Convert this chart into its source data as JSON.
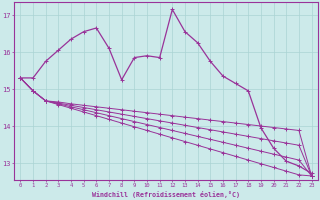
{
  "xlabel": "Windchill (Refroidissement éolien,°C)",
  "background_color": "#cceaea",
  "grid_color": "#aad4d4",
  "line_color": "#993399",
  "xlim": [
    -0.5,
    23.5
  ],
  "ylim": [
    12.55,
    17.35
  ],
  "yticks": [
    13,
    14,
    15,
    16,
    17
  ],
  "xticks": [
    0,
    1,
    2,
    3,
    4,
    5,
    6,
    7,
    8,
    9,
    10,
    11,
    12,
    13,
    14,
    15,
    16,
    17,
    18,
    19,
    20,
    21,
    22,
    23
  ],
  "series": [
    [
      15.3,
      15.3,
      15.75,
      16.05,
      16.35,
      16.55,
      16.65,
      16.1,
      15.25,
      15.85,
      15.9,
      15.85,
      17.15,
      16.55,
      16.25,
      15.75,
      15.35,
      15.15,
      14.95,
      13.95,
      13.4,
      13.05,
      12.92,
      12.72
    ],
    [
      15.3,
      14.95,
      14.68,
      14.58,
      14.48,
      14.38,
      14.28,
      14.18,
      14.08,
      13.98,
      13.88,
      13.78,
      13.68,
      13.58,
      13.48,
      13.38,
      13.28,
      13.18,
      13.08,
      12.98,
      12.88,
      12.78,
      12.68,
      12.65
    ],
    [
      15.3,
      14.95,
      14.68,
      14.6,
      14.52,
      14.44,
      14.36,
      14.28,
      14.2,
      14.12,
      14.04,
      13.96,
      13.88,
      13.8,
      13.72,
      13.64,
      13.56,
      13.48,
      13.4,
      13.32,
      13.24,
      13.16,
      13.08,
      12.65
    ],
    [
      15.3,
      14.95,
      14.68,
      14.62,
      14.56,
      14.5,
      14.44,
      14.38,
      14.32,
      14.26,
      14.2,
      14.14,
      14.08,
      14.02,
      13.96,
      13.9,
      13.84,
      13.78,
      13.72,
      13.66,
      13.6,
      13.54,
      13.48,
      12.65
    ],
    [
      15.3,
      14.95,
      14.68,
      14.65,
      14.6,
      14.56,
      14.52,
      14.48,
      14.44,
      14.4,
      14.36,
      14.32,
      14.28,
      14.24,
      14.2,
      14.16,
      14.12,
      14.08,
      14.04,
      14.0,
      13.96,
      13.92,
      13.88,
      12.65
    ]
  ]
}
